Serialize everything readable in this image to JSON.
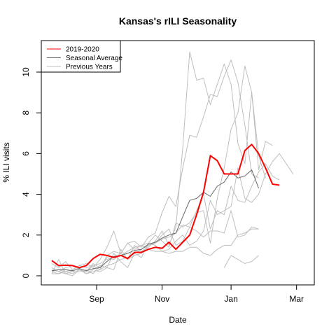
{
  "chart_data": {
    "type": "line",
    "title": "Kansas's rILI Seasonality",
    "xlabel": "Date",
    "ylabel": "% ILI visits",
    "x_ticks": [
      "Sep",
      "Nov",
      "Jan",
      "Mar"
    ],
    "y_ticks": [
      "0",
      "2",
      "4",
      "6",
      "8",
      "10"
    ],
    "ylim": [
      -0.4,
      11.4
    ],
    "grid": false,
    "legend_position": "top-left",
    "legend": [
      {
        "label": "2019-2020",
        "color": "#ff0000"
      },
      {
        "label": "Seasonal Average",
        "color": "#666666"
      },
      {
        "label": "Previous Years",
        "color": "#bebebe"
      }
    ],
    "x_weeks": [
      0,
      1,
      2,
      3,
      4,
      5,
      6,
      7,
      8,
      9,
      10,
      11,
      12,
      13,
      14,
      15,
      16,
      17,
      18,
      19,
      20,
      21,
      22,
      23,
      24,
      25,
      26,
      27,
      28,
      29,
      30,
      31,
      32,
      33,
      34,
      35,
      36,
      37,
      38
    ],
    "series": [
      {
        "name": "Previous Years",
        "color": "#bebebe",
        "values": [
          0.1,
          0.8,
          0.1,
          0.2,
          0.2,
          0.3,
          0.1,
          0.5,
          0.4,
          1.1,
          0.7,
          0.4,
          1.1,
          0.9,
          1.6,
          1.5,
          1.2,
          1.3,
          1.7,
          2.0,
          1.5,
          1.7,
          2.2,
          3.7,
          3.0,
          3.2,
          3.4,
          5.3,
          3.8,
          3.6,
          4.0,
          5.0,
          5.6,
          6.0,
          5.5,
          5.0,
          null,
          null,
          null
        ]
      },
      {
        "name": "Previous Years",
        "color": "#bebebe",
        "values": [
          0.2,
          0.1,
          0.3,
          0.2,
          0.4,
          0.1,
          0.3,
          0.2,
          0.4,
          0.3,
          1.3,
          0.8,
          1.0,
          1.1,
          1.5,
          1.6,
          2.0,
          2.3,
          1.5,
          1.7,
          2.4,
          3.2,
          4.0,
          2.3,
          3.2,
          3.0,
          4.4,
          3.7,
          3.6,
          4.4,
          5.1,
          5.5,
          4.9,
          4.7,
          null,
          null,
          null,
          null,
          null
        ]
      },
      {
        "name": "Previous Years",
        "color": "#bebebe",
        "values": [
          0.6,
          0.4,
          0.7,
          0.3,
          0.5,
          0.6,
          0.4,
          0.8,
          1.4,
          2.2,
          1.1,
          0.8,
          1.5,
          1.2,
          1.4,
          1.7,
          2.2,
          1.5,
          2.4,
          6.3,
          11.0,
          9.6,
          9.7,
          8.4,
          9.4,
          10.4,
          9.4,
          6.5,
          5.5,
          9.0,
          5.2,
          6.6,
          6.4,
          null,
          null,
          null,
          null,
          null,
          null
        ]
      },
      {
        "name": "Previous Years",
        "color": "#bebebe",
        "values": [
          0.4,
          0.2,
          0.1,
          0.0,
          0.3,
          0.2,
          0.5,
          0.3,
          1.0,
          1.2,
          1.1,
          1.6,
          1.7,
          1.4,
          1.9,
          2.1,
          3.1,
          3.9,
          3.4,
          5.3,
          6.9,
          6.8,
          7.8,
          8.9,
          8.8,
          9.8,
          10.6,
          9.5,
          7.4,
          5.0,
          4.8,
          null,
          null,
          null,
          null,
          null,
          null,
          null,
          null
        ]
      },
      {
        "name": "Previous Years",
        "color": "#bebebe",
        "values": [
          0.3,
          0.2,
          0.4,
          0.5,
          0.3,
          0.2,
          0.6,
          0.4,
          0.9,
          0.8,
          1.1,
          1.6,
          1.3,
          1.5,
          1.6,
          2.0,
          1.7,
          1.4,
          2.6,
          2.4,
          2.6,
          3.1,
          3.2,
          1.6,
          3.8,
          5.3,
          7.2,
          8.0,
          10.3,
          9.0,
          5.9,
          4.8,
          null,
          null,
          null,
          null,
          null,
          null,
          null
        ]
      },
      {
        "name": "Previous Years",
        "color": "#bebebe",
        "values": [
          0.1,
          0.1,
          0.2,
          0.3,
          0.5,
          0.4,
          0.5,
          0.6,
          0.8,
          0.9,
          1.0,
          1.2,
          1.4,
          1.5,
          1.3,
          1.2,
          1.2,
          1.1,
          1.2,
          1.2,
          1.4,
          1.4,
          1.1,
          1.0,
          1.3,
          1.5,
          1.5,
          2.0,
          2.1,
          2.3,
          2.3,
          null,
          null,
          null,
          null,
          null,
          null,
          null,
          null
        ]
      },
      {
        "name": "Previous Years",
        "color": "#bebebe",
        "values": [
          0.2,
          0.3,
          0.2,
          0.1,
          0.3,
          0.1,
          0.2,
          0.3,
          0.5,
          0.6,
          0.8,
          0.9,
          1.1,
          1.3,
          1.5,
          1.6,
          1.8,
          1.9,
          2.1,
          2.5,
          2.4,
          2.2,
          1.9,
          2.2,
          2.2,
          2.1,
          3.2,
          1.9,
          2.0,
          2.4,
          2.3,
          null,
          null,
          null,
          null,
          null,
          null,
          null,
          null
        ]
      },
      {
        "name": "Previous Years",
        "color": "#bebebe",
        "values": [
          null,
          null,
          null,
          null,
          null,
          null,
          null,
          null,
          null,
          null,
          null,
          null,
          null,
          null,
          null,
          null,
          null,
          null,
          null,
          null,
          null,
          null,
          null,
          null,
          null,
          0.4,
          1.0,
          0.8,
          0.6,
          0.7,
          1.0,
          null,
          null,
          null,
          null,
          null,
          null,
          null,
          null
        ]
      },
      {
        "name": "Seasonal Average",
        "color": "#666666",
        "values": [
          0.25,
          0.3,
          0.3,
          0.25,
          0.35,
          0.25,
          0.35,
          0.4,
          0.7,
          0.95,
          1.0,
          1.1,
          1.25,
          1.3,
          1.55,
          1.65,
          1.85,
          2.0,
          2.1,
          2.9,
          3.7,
          3.8,
          4.1,
          3.9,
          4.4,
          4.6,
          5.1,
          4.8,
          4.9,
          5.2,
          4.3,
          null,
          null,
          null,
          null,
          null,
          null,
          null,
          null
        ]
      },
      {
        "name": "2019-2020",
        "color": "#ff0000",
        "values": [
          0.75,
          0.5,
          0.52,
          0.5,
          0.4,
          0.5,
          0.85,
          1.05,
          1.0,
          0.9,
          1.0,
          0.85,
          1.15,
          1.15,
          1.3,
          1.4,
          1.35,
          1.65,
          1.3,
          1.65,
          2.0,
          3.0,
          4.1,
          5.9,
          5.65,
          5.0,
          5.0,
          5.0,
          6.15,
          6.45,
          6.0,
          5.3,
          4.5,
          4.45,
          null,
          null,
          null,
          null,
          null
        ]
      }
    ]
  }
}
